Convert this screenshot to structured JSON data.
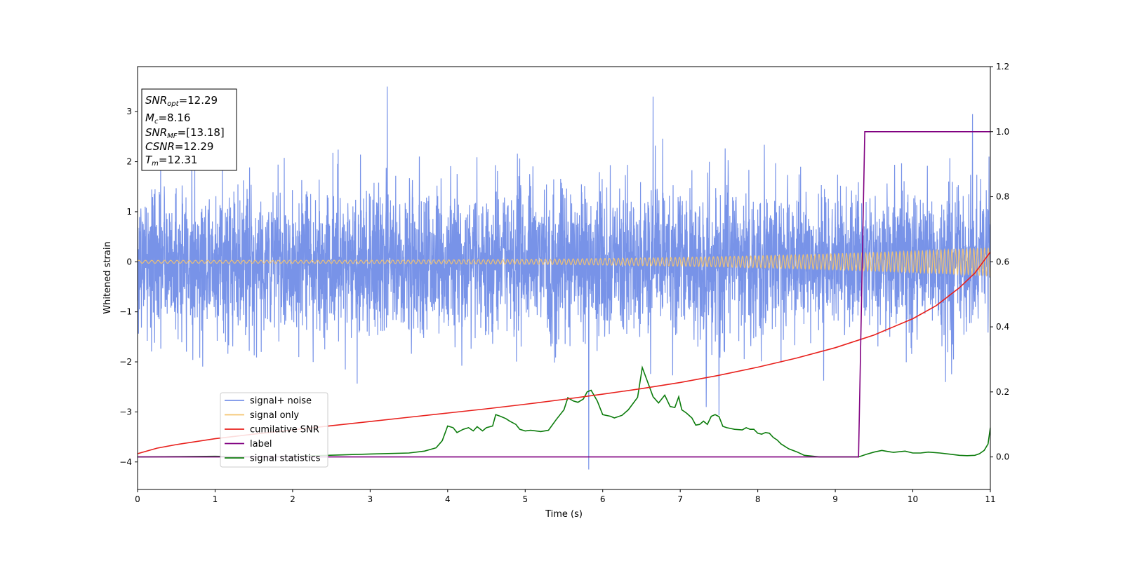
{
  "chart_data": {
    "type": "line",
    "xlabel": "Time (s)",
    "ylabel_left": "Whitened strain",
    "ylabel_right": "",
    "xlim": [
      0,
      11
    ],
    "ylim_left": [
      -4.55,
      3.9
    ],
    "ylim_right": [
      -0.1,
      1.2
    ],
    "x_ticks": [
      0,
      1,
      2,
      3,
      4,
      5,
      6,
      7,
      8,
      9,
      10,
      11
    ],
    "y_ticks_left": [
      -4,
      -3,
      -2,
      -1,
      0,
      1,
      2,
      3
    ],
    "y_ticks_right": [
      0.0,
      0.2,
      0.4,
      0.6,
      0.8,
      1.0,
      1.2
    ],
    "annotation": [
      {
        "base": "SNR",
        "sub": "opt",
        "rest": "=12.29"
      },
      {
        "base": "M",
        "sub": "c",
        "rest": "=8.16"
      },
      {
        "base": "SNR",
        "sub": "MF",
        "rest": "=[13.18]"
      },
      {
        "base": "CSNR",
        "sub": "",
        "rest": "=12.29"
      },
      {
        "base": "T",
        "sub": "m",
        "rest": "=12.31"
      }
    ],
    "legend_position": "lower-left",
    "series": [
      {
        "name": "signal+ noise",
        "axis": "left",
        "color": "#7893e8",
        "kind": "noise",
        "noise_sigma": 0.95,
        "noise_max": 3.5,
        "noise_min": -4.15,
        "sample_rate_hz": 400,
        "sample_points": [
          [
            3.22,
            3.5
          ],
          [
            5.82,
            -4.15
          ],
          [
            6.65,
            3.3
          ],
          [
            10.77,
            2.95
          ]
        ]
      },
      {
        "name": "signal only",
        "axis": "left",
        "color": "#f5c46e",
        "kind": "chirp",
        "amplitude_start": 0.03,
        "amplitude_end": 0.28,
        "cycles_per_second": 12
      },
      {
        "name": "cumilative SNR",
        "axis": "right",
        "color": "#e8201c",
        "x": [
          0,
          0.25,
          0.5,
          1,
          1.5,
          2,
          2.5,
          3,
          3.5,
          4,
          4.5,
          5,
          5.5,
          6,
          6.5,
          7,
          7.5,
          8,
          8.5,
          9,
          9.5,
          10,
          10.3,
          10.6,
          10.8,
          11
        ],
        "y": [
          0.01,
          0.027,
          0.038,
          0.056,
          0.07,
          0.083,
          0.096,
          0.109,
          0.122,
          0.135,
          0.148,
          0.162,
          0.177,
          0.193,
          0.21,
          0.229,
          0.251,
          0.276,
          0.304,
          0.336,
          0.375,
          0.425,
          0.465,
          0.52,
          0.565,
          0.63
        ]
      },
      {
        "name": "label",
        "axis": "right",
        "color": "#800080",
        "x": [
          0,
          9.3,
          9.38,
          11
        ],
        "y": [
          0,
          0,
          1,
          1
        ]
      },
      {
        "name": "signal statistics",
        "axis": "right",
        "color": "#0c7c0c",
        "x": [
          0,
          0.5,
          1,
          1.5,
          2,
          2.3,
          2.6,
          3,
          3.5,
          3.7,
          3.85,
          3.93,
          4.0,
          4.07,
          4.12,
          4.2,
          4.27,
          4.33,
          4.38,
          4.45,
          4.5,
          4.58,
          4.62,
          4.68,
          4.75,
          4.8,
          4.88,
          4.93,
          5.0,
          5.07,
          5.2,
          5.3,
          5.4,
          5.5,
          5.55,
          5.62,
          5.68,
          5.75,
          5.8,
          5.85,
          5.93,
          6.0,
          6.1,
          6.15,
          6.25,
          6.33,
          6.45,
          6.51,
          6.58,
          6.65,
          6.72,
          6.8,
          6.87,
          6.93,
          6.98,
          7.02,
          7.08,
          7.15,
          7.2,
          7.25,
          7.3,
          7.35,
          7.4,
          7.45,
          7.5,
          7.55,
          7.6,
          7.7,
          7.8,
          7.85,
          7.9,
          7.95,
          8.0,
          8.05,
          8.1,
          8.15,
          8.2,
          8.25,
          8.3,
          8.4,
          8.5,
          8.6,
          8.8,
          9.0,
          9.3,
          9.4,
          9.5,
          9.6,
          9.65,
          9.75,
          9.9,
          10.0,
          10.1,
          10.2,
          10.35,
          10.5,
          10.6,
          10.7,
          10.8,
          10.86,
          10.92,
          10.97,
          11.0
        ],
        "y": [
          0,
          0.001,
          0.002,
          0.0,
          0.002,
          0.004,
          0.006,
          0.009,
          0.012,
          0.018,
          0.028,
          0.05,
          0.095,
          0.09,
          0.075,
          0.085,
          0.09,
          0.08,
          0.093,
          0.08,
          0.09,
          0.095,
          0.13,
          0.125,
          0.118,
          0.11,
          0.1,
          0.085,
          0.08,
          0.082,
          0.078,
          0.082,
          0.115,
          0.145,
          0.182,
          0.172,
          0.168,
          0.178,
          0.2,
          0.205,
          0.172,
          0.13,
          0.125,
          0.12,
          0.128,
          0.145,
          0.183,
          0.275,
          0.23,
          0.185,
          0.166,
          0.19,
          0.155,
          0.152,
          0.185,
          0.145,
          0.135,
          0.12,
          0.098,
          0.1,
          0.11,
          0.1,
          0.125,
          0.13,
          0.124,
          0.094,
          0.09,
          0.085,
          0.083,
          0.09,
          0.085,
          0.085,
          0.073,
          0.07,
          0.075,
          0.073,
          0.06,
          0.052,
          0.04,
          0.025,
          0.016,
          0.005,
          0.0,
          0.0,
          0.0,
          0.008,
          0.015,
          0.02,
          0.018,
          0.014,
          0.018,
          0.012,
          0.012,
          0.015,
          0.012,
          0.008,
          0.005,
          0.004,
          0.005,
          0.01,
          0.02,
          0.04,
          0.09
        ]
      }
    ]
  }
}
